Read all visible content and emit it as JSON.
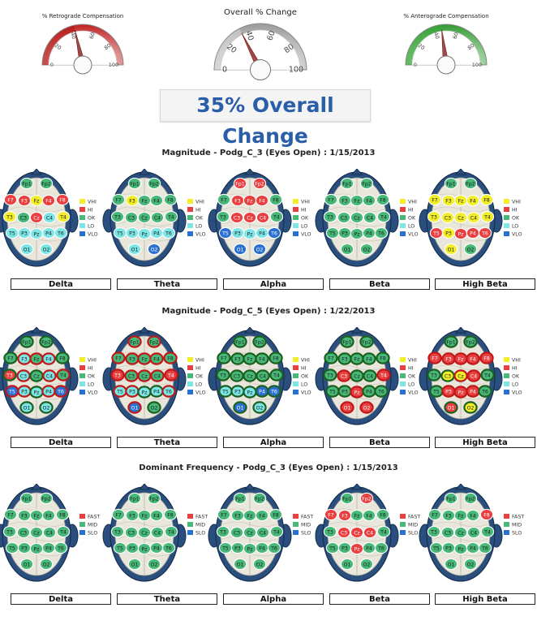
{
  "gauges": [
    {
      "title": "% Retrograde Compensation",
      "ticks": [
        "0",
        "20",
        "40",
        "60",
        "80",
        "100"
      ],
      "value": 43,
      "theme": "red"
    },
    {
      "title": "Overall % Change",
      "ticks": [
        "0",
        "20",
        "40",
        "60",
        "80",
        "100"
      ],
      "value": 35,
      "theme": "gray"
    },
    {
      "title": "% Anterograde Compensation",
      "ticks": [
        "0",
        "20",
        "40",
        "60",
        "80",
        "100"
      ],
      "value": 46,
      "theme": "green"
    }
  ],
  "overall_change_text": "35% Overall Change",
  "colors": {
    "VHI": "#f2ee2a",
    "HI": "#e84040",
    "OK": "#48b878",
    "LO": "#7ce6e6",
    "VLO": "#2a70d0",
    "FAST": "#e84040",
    "MID": "#48b878",
    "SLO": "#2a70d0",
    "ring_red": "#c01818",
    "ring_green": "#1c6020"
  },
  "legends": {
    "magnitude": [
      "VHI",
      "HI",
      "OK",
      "LO",
      "VLO"
    ],
    "frequency": [
      "FAST",
      "MID",
      "SLO"
    ]
  },
  "bands": [
    "Delta",
    "Theta",
    "Alpha",
    "Beta",
    "High Beta"
  ],
  "electrodes": [
    "Fp1",
    "Fp2",
    "F7",
    "F3",
    "Fz",
    "F4",
    "F8",
    "T3",
    "C3",
    "Cz",
    "C4",
    "T4",
    "T5",
    "P3",
    "Pz",
    "P4",
    "T6",
    "O1",
    "O2"
  ],
  "chart_data": {
    "type": "heatmap",
    "sections": [
      {
        "title": "Magnitude - Podg_C_3 (Eyes Open) : 1/15/2013",
        "legend": "magnitude",
        "maps": [
          {
            "band": "Delta",
            "values": {
              "Fp1": "OK",
              "Fp2": "OK",
              "F7": "HI",
              "F3": "HI",
              "Fz": "VHI",
              "F4": "HI",
              "F8": "HI",
              "T3": "VHI",
              "C3": "OK",
              "Cz": "HI",
              "C4": "LO",
              "T4": "VHI",
              "T5": "LO",
              "P3": "LO",
              "Pz": "LO",
              "P4": "LO",
              "T6": "LO",
              "O1": "LO",
              "O2": "LO"
            }
          },
          {
            "band": "Theta",
            "values": {
              "Fp1": "OK",
              "Fp2": "OK",
              "F7": "OK",
              "F3": "VHI",
              "Fz": "OK",
              "F4": "OK",
              "F8": "OK",
              "T3": "OK",
              "C3": "OK",
              "Cz": "OK",
              "C4": "OK",
              "T4": "OK",
              "T5": "LO",
              "P3": "LO",
              "Pz": "LO",
              "P4": "LO",
              "T6": "LO",
              "O1": "LO",
              "O2": "VLO"
            }
          },
          {
            "band": "Alpha",
            "values": {
              "Fp1": "HI",
              "Fp2": "HI",
              "F7": "OK",
              "F3": "HI",
              "Fz": "HI",
              "F4": "HI",
              "F8": "OK",
              "T3": "OK",
              "C3": "HI",
              "Cz": "HI",
              "C4": "HI",
              "T4": "OK",
              "T5": "VLO",
              "P3": "LO",
              "Pz": "LO",
              "P4": "LO",
              "T6": "VLO",
              "O1": "VLO",
              "O2": "VLO"
            }
          },
          {
            "band": "Beta",
            "values": {
              "Fp1": "OK",
              "Fp2": "OK",
              "F7": "OK",
              "F3": "OK",
              "Fz": "OK",
              "F4": "OK",
              "F8": "OK",
              "T3": "OK",
              "C3": "OK",
              "Cz": "OK",
              "C4": "OK",
              "T4": "OK",
              "T5": "OK",
              "P3": "OK",
              "Pz": "OK",
              "P4": "OK",
              "T6": "OK",
              "O1": "OK",
              "O2": "OK"
            }
          },
          {
            "band": "High Beta",
            "values": {
              "Fp1": "OK",
              "Fp2": "OK",
              "F7": "VHI",
              "F3": "VHI",
              "Fz": "VHI",
              "F4": "VHI",
              "F8": "VHI",
              "T3": "VHI",
              "C3": "VHI",
              "Cz": "VHI",
              "C4": "VHI",
              "T4": "VHI",
              "T5": "HI",
              "P3": "VHI",
              "Pz": "HI",
              "P4": "HI",
              "T6": "HI",
              "O1": "VHI",
              "O2": "OK"
            }
          }
        ]
      },
      {
        "title": "Magnitude - Podg_C_5 (Eyes Open) : 1/22/2013",
        "legend": "magnitude",
        "maps": [
          {
            "band": "Delta",
            "values": {
              "Fp1": "OK",
              "Fp2": "OK",
              "F7": "OK",
              "F3": "LO",
              "Fz": "OK",
              "F4": "LO",
              "F8": "OK",
              "T3": "HI",
              "C3": "LO",
              "Cz": "OK",
              "C4": "LO",
              "T4": "OK",
              "T5": "VLO",
              "P3": "LO",
              "Pz": "LO",
              "P4": "LO",
              "T6": "VLO",
              "O1": "LO",
              "O2": "LO"
            },
            "rings": {
              "Fp1": "green",
              "Fp2": "green",
              "F7": "green",
              "F3": "red",
              "Fz": "red",
              "F4": "red",
              "F8": "green",
              "T3": "green",
              "C3": "red",
              "Cz": "green",
              "C4": "red",
              "T4": "red",
              "T5": "red",
              "P3": "red",
              "Pz": "green",
              "P4": "red",
              "T6": "red",
              "O1": "green",
              "O2": "green"
            }
          },
          {
            "band": "Theta",
            "values": {
              "Fp1": "OK",
              "Fp2": "OK",
              "F7": "OK",
              "F3": "OK",
              "Fz": "OK",
              "F4": "OK",
              "F8": "OK",
              "T3": "HI",
              "C3": "OK",
              "Cz": "OK",
              "C4": "OK",
              "T4": "HI",
              "T5": "LO",
              "P3": "LO",
              "Pz": "LO",
              "P4": "LO",
              "T6": "LO",
              "O1": "VLO",
              "O2": "OK"
            },
            "rings": {
              "Fp1": "red",
              "Fp2": "red",
              "F7": "red",
              "F3": "red",
              "Fz": "red",
              "F4": "red",
              "F8": "red",
              "T3": "red",
              "C3": "red",
              "Cz": "red",
              "C4": "red",
              "T4": "red",
              "T5": "red",
              "P3": "red",
              "Pz": "green",
              "P4": "green",
              "T6": "red",
              "O1": "red",
              "O2": "green"
            }
          },
          {
            "band": "Alpha",
            "values": {
              "Fp1": "OK",
              "Fp2": "OK",
              "F7": "OK",
              "F3": "OK",
              "Fz": "OK",
              "F4": "OK",
              "F8": "OK",
              "T3": "OK",
              "C3": "OK",
              "Cz": "OK",
              "C4": "OK",
              "T4": "OK",
              "T5": "LO",
              "P3": "LO",
              "Pz": "LO",
              "P4": "VLO",
              "T6": "VLO",
              "O1": "VLO",
              "O2": "LO"
            },
            "rings": {
              "Fp1": "green",
              "Fp2": "green",
              "F7": "green",
              "F3": "green",
              "Fz": "green",
              "F4": "green",
              "F8": "green",
              "T3": "green",
              "C3": "green",
              "Cz": "green",
              "C4": "green",
              "T4": "green",
              "T5": "green",
              "P3": "green",
              "Pz": "green",
              "P4": "green",
              "T6": "green",
              "O1": "green",
              "O2": "green"
            }
          },
          {
            "band": "Beta",
            "values": {
              "Fp1": "OK",
              "Fp2": "OK",
              "F7": "OK",
              "F3": "OK",
              "Fz": "OK",
              "F4": "OK",
              "F8": "OK",
              "T3": "OK",
              "C3": "HI",
              "Cz": "OK",
              "C4": "OK",
              "T4": "HI",
              "T5": "OK",
              "P3": "OK",
              "Pz": "HI",
              "P4": "OK",
              "T6": "OK",
              "O1": "HI",
              "O2": "HI"
            },
            "rings": {
              "Fp1": "green",
              "Fp2": "green",
              "F7": "green",
              "F3": "green",
              "Fz": "green",
              "F4": "green",
              "F8": "green",
              "T3": "green",
              "C3": "red",
              "Cz": "green",
              "C4": "green",
              "T4": "red",
              "T5": "green",
              "P3": "green",
              "Pz": "red",
              "P4": "green",
              "T6": "green",
              "O1": "red",
              "O2": "red"
            }
          },
          {
            "band": "High Beta",
            "values": {
              "Fp1": "OK",
              "Fp2": "OK",
              "F7": "HI",
              "F3": "HI",
              "Fz": "HI",
              "F4": "HI",
              "F8": "HI",
              "T3": "OK",
              "C3": "VHI",
              "Cz": "VHI",
              "C4": "HI",
              "T4": "OK",
              "T5": "OK",
              "P3": "HI",
              "Pz": "HI",
              "P4": "HI",
              "T6": "OK",
              "O1": "HI",
              "O2": "VHI"
            },
            "rings": {
              "Fp1": "green",
              "Fp2": "green",
              "F7": "red",
              "F3": "red",
              "Fz": "red",
              "F4": "red",
              "F8": "red",
              "T3": "green",
              "C3": "green",
              "Cz": "red",
              "C4": "red",
              "T4": "green",
              "T5": "green",
              "P3": "red",
              "Pz": "red",
              "P4": "red",
              "T6": "green",
              "O1": "green",
              "O2": "green"
            }
          }
        ]
      },
      {
        "title": "Dominant Frequency - Podg_C_3 (Eyes Open) : 1/15/2013",
        "legend": "frequency",
        "maps": [
          {
            "band": "Delta",
            "values": {
              "Fp1": "MID",
              "Fp2": "MID",
              "F7": "MID",
              "F3": "MID",
              "Fz": "MID",
              "F4": "MID",
              "F8": "MID",
              "T3": "MID",
              "C3": "MID",
              "Cz": "MID",
              "C4": "MID",
              "T4": "MID",
              "T5": "MID",
              "P3": "MID",
              "Pz": "MID",
              "P4": "MID",
              "T6": "MID",
              "O1": "MID",
              "O2": "MID"
            }
          },
          {
            "band": "Theta",
            "values": {
              "Fp1": "MID",
              "Fp2": "MID",
              "F7": "MID",
              "F3": "MID",
              "Fz": "MID",
              "F4": "MID",
              "F8": "MID",
              "T3": "MID",
              "C3": "MID",
              "Cz": "MID",
              "C4": "MID",
              "T4": "MID",
              "T5": "MID",
              "P3": "MID",
              "Pz": "MID",
              "P4": "MID",
              "T6": "MID",
              "O1": "MID",
              "O2": "MID"
            }
          },
          {
            "band": "Alpha",
            "values": {
              "Fp1": "MID",
              "Fp2": "MID",
              "F7": "MID",
              "F3": "MID",
              "Fz": "MID",
              "F4": "MID",
              "F8": "MID",
              "T3": "MID",
              "C3": "MID",
              "Cz": "MID",
              "C4": "MID",
              "T4": "MID",
              "T5": "MID",
              "P3": "MID",
              "Pz": "MID",
              "P4": "MID",
              "T6": "MID",
              "O1": "MID",
              "O2": "MID"
            }
          },
          {
            "band": "Beta",
            "values": {
              "Fp1": "MID",
              "Fp2": "FAST",
              "F7": "FAST",
              "F3": "FAST",
              "Fz": "MID",
              "F4": "MID",
              "F8": "MID",
              "T3": "MID",
              "C3": "FAST",
              "Cz": "FAST",
              "C4": "FAST",
              "T4": "MID",
              "T5": "MID",
              "P3": "MID",
              "Pz": "FAST",
              "P4": "MID",
              "T6": "MID",
              "O1": "MID",
              "O2": "MID"
            }
          },
          {
            "band": "High Beta",
            "values": {
              "Fp1": "MID",
              "Fp2": "MID",
              "F7": "MID",
              "F3": "MID",
              "Fz": "MID",
              "F4": "MID",
              "F8": "FAST",
              "T3": "MID",
              "C3": "MID",
              "Cz": "MID",
              "C4": "MID",
              "T4": "MID",
              "T5": "MID",
              "P3": "MID",
              "Pz": "MID",
              "P4": "MID",
              "T6": "MID",
              "O1": "MID",
              "O2": "MID"
            }
          }
        ]
      }
    ]
  }
}
